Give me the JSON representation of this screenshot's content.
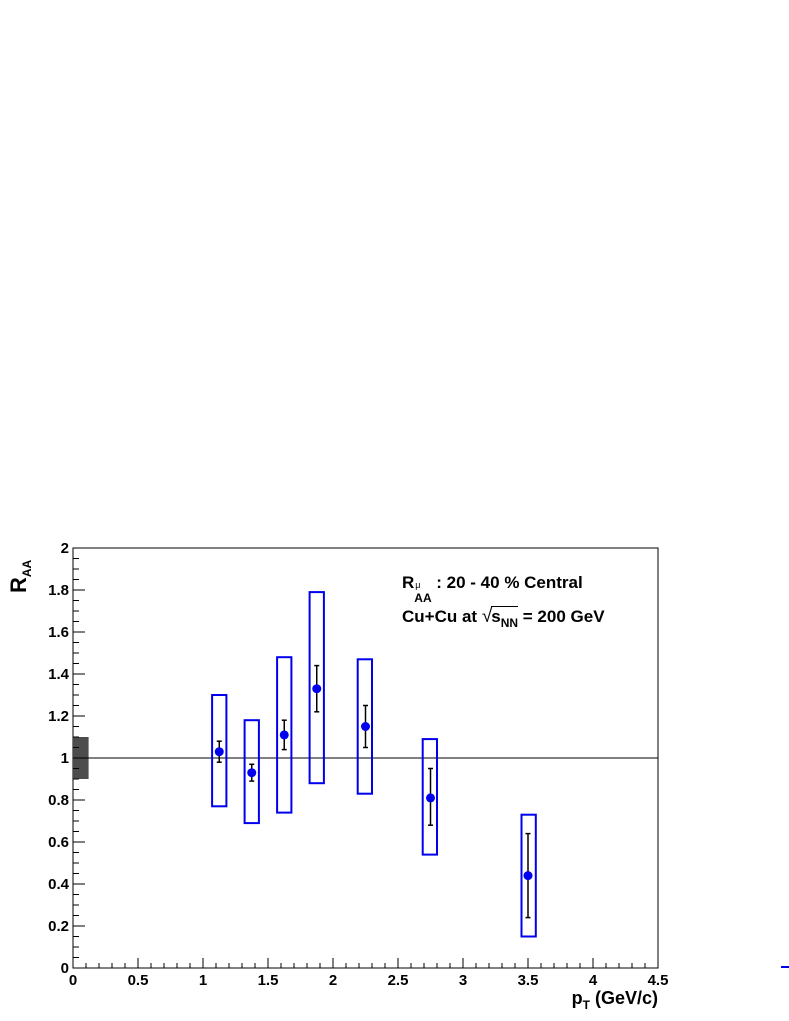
{
  "chart_data": {
    "type": "scatter",
    "xlabel_main": "p",
    "xlabel_sub": "T",
    "xlabel_rest": " (GeV/c)",
    "ylabel_main": "R",
    "ylabel_sub": "AA",
    "xlim": [
      0,
      4.5
    ],
    "ylim": [
      0,
      2
    ],
    "x_ticks": [
      "0",
      "0.5",
      "1",
      "1.5",
      "2",
      "2.5",
      "3",
      "3.5",
      "4",
      "4.5"
    ],
    "y_ticks": [
      "0",
      "0.2",
      "0.4",
      "0.6",
      "0.8",
      "1",
      "1.2",
      "1.4",
      "1.6",
      "1.8",
      "2"
    ],
    "reference_line": 1,
    "normalization_band": {
      "x": [
        0,
        0.12
      ],
      "y": [
        0.9,
        1.1
      ],
      "color": "#4d4d4d"
    },
    "annotation1": {
      "main": "R",
      "sup": "μ",
      "sub": "AA",
      "rest": ": 20 - 40 % Central"
    },
    "annotation2": {
      "pre": "Cu+Cu at ",
      "root_main": "s",
      "root_sub": "NN",
      "rest": " = 200 GeV"
    },
    "marker_color": "#0000ee",
    "points": [
      {
        "x": 1.125,
        "y": 1.03,
        "stat": [
          0.98,
          1.08
        ],
        "sys": [
          0.77,
          1.3
        ],
        "box": [
          1.07,
          1.18
        ]
      },
      {
        "x": 1.375,
        "y": 0.93,
        "stat": [
          0.89,
          0.97
        ],
        "sys": [
          0.69,
          1.18
        ],
        "box": [
          1.32,
          1.43
        ]
      },
      {
        "x": 1.625,
        "y": 1.11,
        "stat": [
          1.04,
          1.18
        ],
        "sys": [
          0.74,
          1.48
        ],
        "box": [
          1.57,
          1.68
        ]
      },
      {
        "x": 1.875,
        "y": 1.33,
        "stat": [
          1.22,
          1.44
        ],
        "sys": [
          0.88,
          1.79
        ],
        "box": [
          1.82,
          1.93
        ]
      },
      {
        "x": 2.25,
        "y": 1.15,
        "stat": [
          1.05,
          1.25
        ],
        "sys": [
          0.83,
          1.47
        ],
        "box": [
          2.19,
          2.3
        ]
      },
      {
        "x": 2.75,
        "y": 0.81,
        "stat": [
          0.68,
          0.95
        ],
        "sys": [
          0.54,
          1.09
        ],
        "box": [
          2.69,
          2.8
        ]
      },
      {
        "x": 3.5,
        "y": 0.44,
        "stat": [
          0.24,
          0.64
        ],
        "sys": [
          0.15,
          0.73
        ],
        "box": [
          3.45,
          3.56
        ]
      }
    ]
  }
}
